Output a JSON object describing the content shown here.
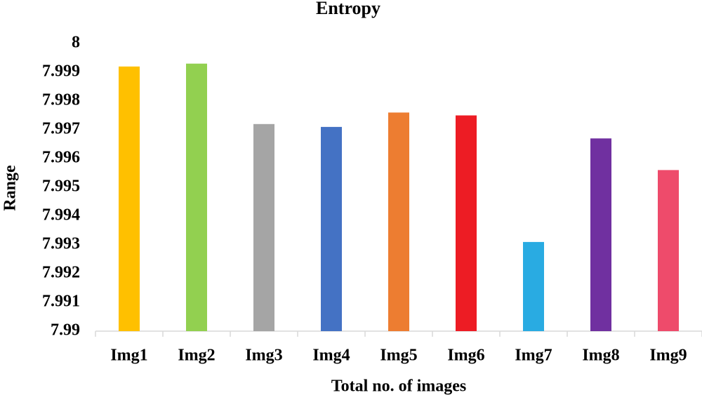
{
  "chart_data": {
    "type": "bar",
    "title": "Entropy",
    "x_label": "Total no. of images",
    "y_label": "Range",
    "categories": [
      "Img1",
      "Img2",
      "Img3",
      "Img4",
      "Img5",
      "Img6",
      "Img7",
      "Img8",
      "Img9"
    ],
    "values": [
      7.9992,
      7.9993,
      7.9972,
      7.9971,
      7.9976,
      7.9975,
      7.9931,
      7.9967,
      7.9956
    ],
    "colors": [
      "#ffc000",
      "#92d050",
      "#a5a5a5",
      "#4472c4",
      "#ed7d31",
      "#ed1c24",
      "#29abe2",
      "#7030a0",
      "#ee4b6b"
    ],
    "ylim": [
      7.99,
      8
    ],
    "yticks": [
      7.99,
      7.991,
      7.992,
      7.993,
      7.994,
      7.995,
      7.996,
      7.997,
      7.998,
      7.999,
      8
    ],
    "grid": false
  }
}
